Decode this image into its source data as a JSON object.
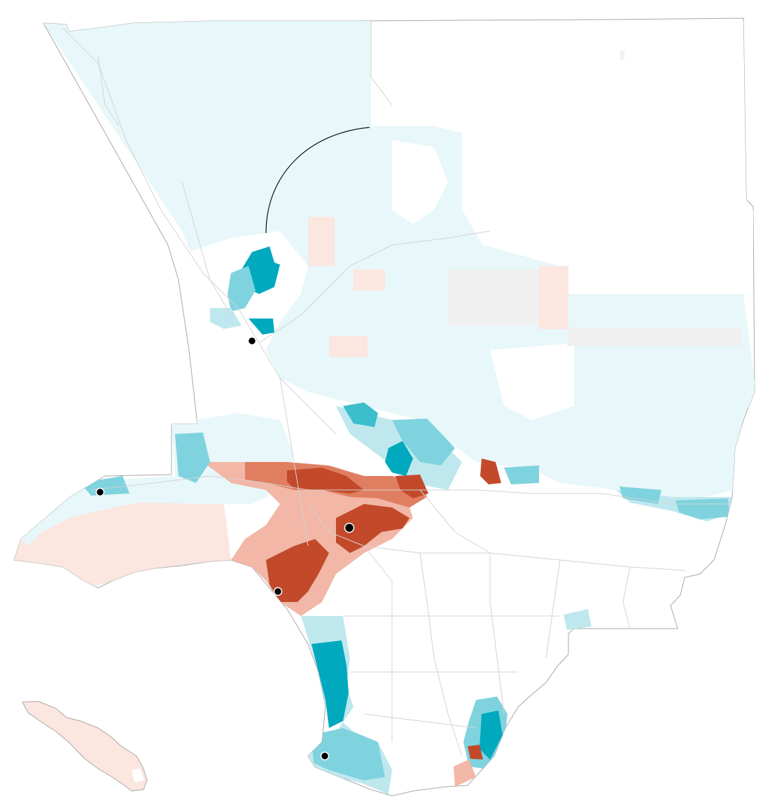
{
  "map": {
    "colors": {
      "teal_light": "#e8f7f9",
      "teal_1": "#bfe8ee",
      "teal_2": "#7fd3de",
      "teal_3": "#3dbecd",
      "teal_dark": "#00a9bd",
      "red_light": "#fbe6e0",
      "red_1": "#f2b7a6",
      "red_2": "#e07e62",
      "red_dark": "#c24a2a",
      "no_data": "#f0f0f0",
      "boundary": "#a8a8a8",
      "road": "#d3d3d3"
    },
    "markers": [
      {
        "name": "marker-santa-clarita"
      },
      {
        "name": "marker-malibu"
      },
      {
        "name": "marker-downtown"
      },
      {
        "name": "marker-venice"
      },
      {
        "name": "marker-palos-verdes"
      }
    ],
    "labels": []
  }
}
